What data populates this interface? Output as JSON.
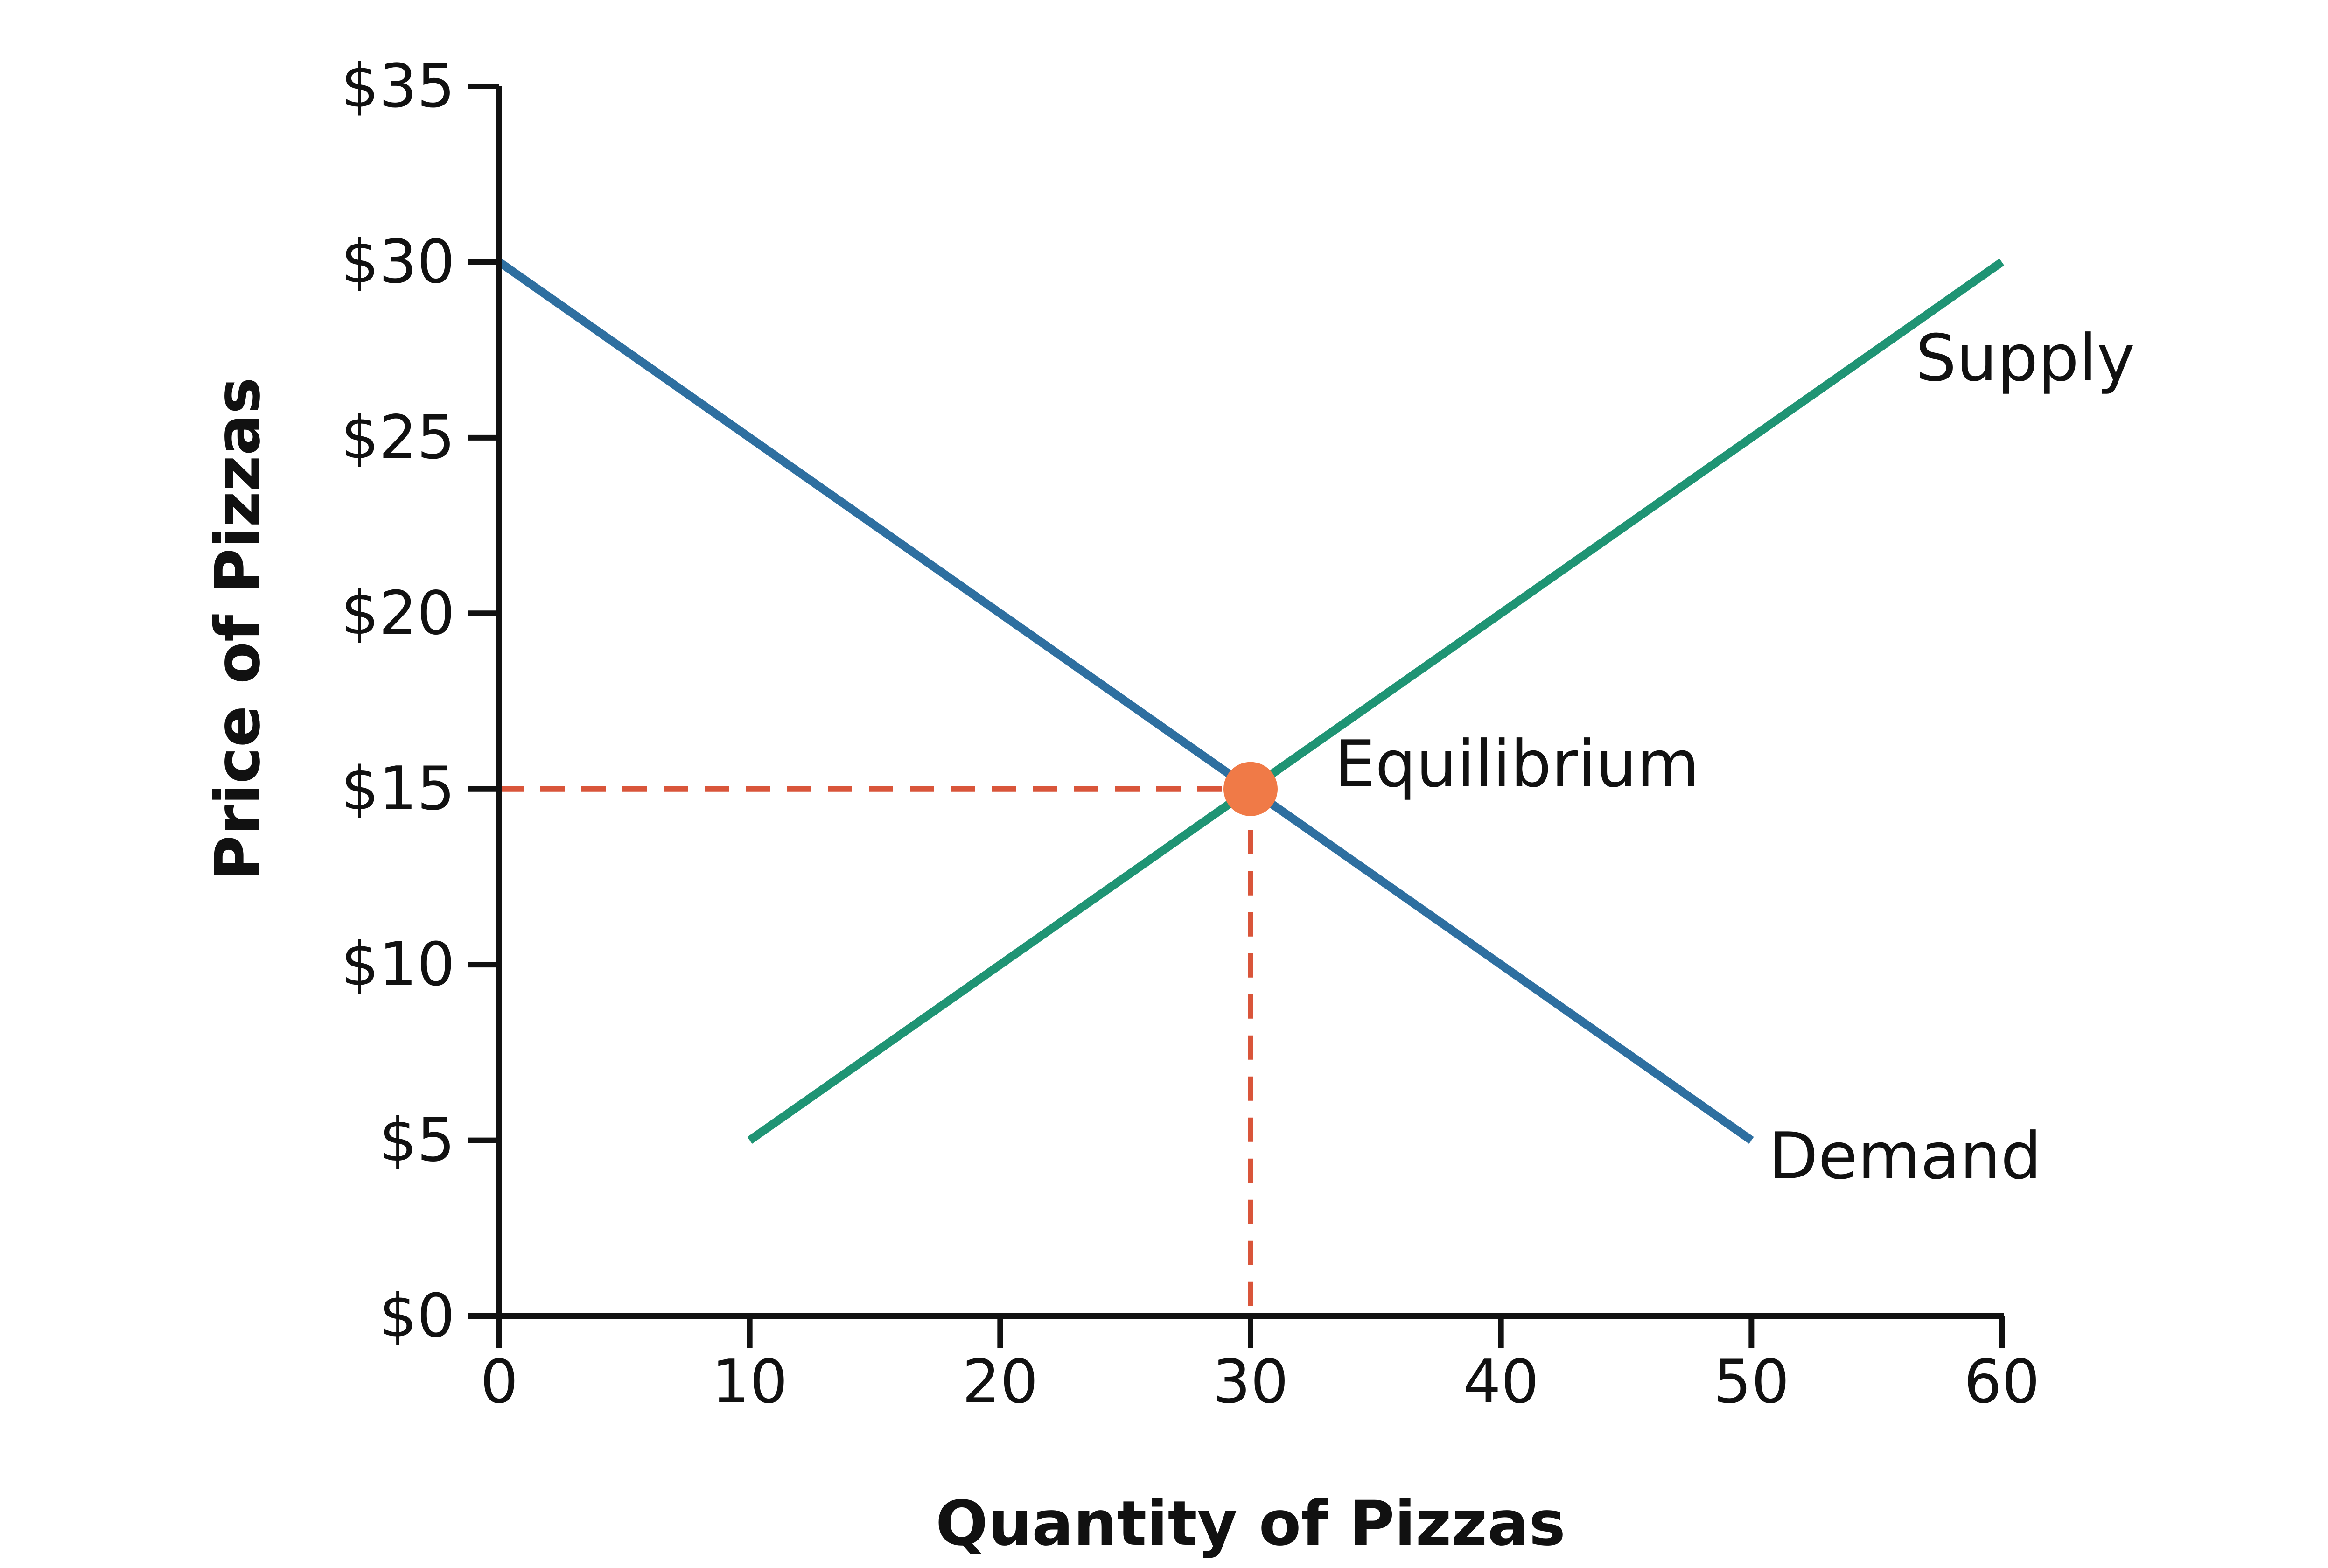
{
  "chart_data": {
    "type": "line",
    "title": "",
    "xlabel": "Quantity of Pizzas",
    "ylabel": "Price of Pizzas",
    "xlim": [
      0,
      60
    ],
    "ylim": [
      0,
      35
    ],
    "x_ticks": [
      0,
      10,
      20,
      30,
      40,
      50,
      60
    ],
    "x_tick_labels": [
      "0",
      "10",
      "20",
      "30",
      "40",
      "50",
      "60"
    ],
    "y_ticks": [
      0,
      5,
      10,
      15,
      20,
      25,
      30,
      35
    ],
    "y_tick_labels": [
      "$0",
      "$5",
      "$10",
      "$15",
      "$20",
      "$25",
      "$30",
      "$35"
    ],
    "grid": false,
    "series": [
      {
        "name": "Demand",
        "color": "#2e6fa0",
        "points": [
          [
            0,
            30
          ],
          [
            50,
            5
          ]
        ]
      },
      {
        "name": "Supply",
        "color": "#1f9474",
        "points": [
          [
            10,
            5
          ],
          [
            60,
            30
          ]
        ]
      }
    ],
    "equilibrium": {
      "label": "Equilibrium",
      "x": 30,
      "y": 15,
      "color": "#f07a47",
      "guide_color": "#d9553a"
    }
  }
}
